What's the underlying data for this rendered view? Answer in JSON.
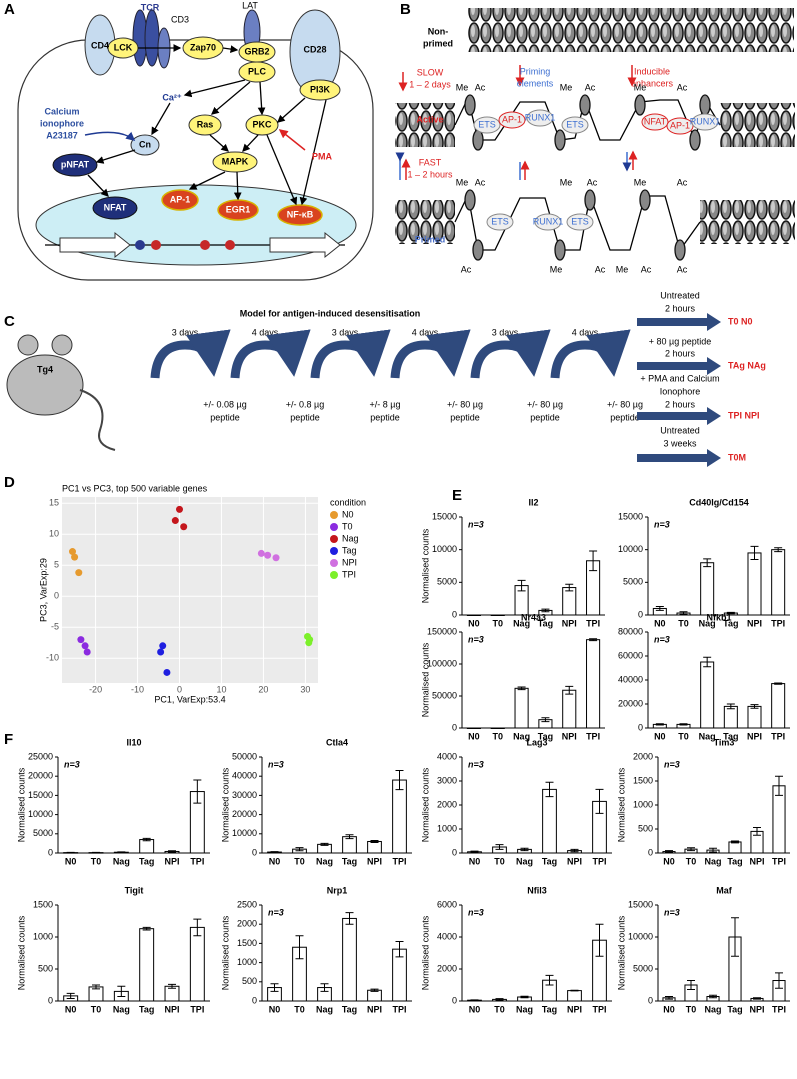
{
  "panels": [
    "A",
    "B",
    "C",
    "D",
    "E",
    "F"
  ],
  "diagram_a": {
    "nodes": [
      "TCR",
      "CD3",
      "LAT",
      "CD4",
      "LCK",
      "Zap70",
      "GRB2",
      "PLC",
      "CD28",
      "PI3K",
      "Ca²⁺",
      "Calcium",
      "ionophore",
      "A23187",
      "Cn",
      "pNFAT",
      "Ras",
      "PKC",
      "PMA",
      "MAPK",
      "NFAT",
      "AP-1",
      "EGR1",
      "NF-κB"
    ]
  },
  "diagram_b": {
    "rows": [
      [
        "Non-",
        "primed"
      ],
      "Active",
      "Primed"
    ],
    "slow": [
      "SLOW",
      "1 – 2 days"
    ],
    "fast": [
      "FAST",
      "1 – 2 hours"
    ],
    "regions": [
      [
        "Priming",
        "elements"
      ],
      [
        "Inducible",
        "enhancers"
      ]
    ],
    "factors_active": [
      "ETS",
      "AP-1",
      "RUNX1",
      "ETS",
      "NFAT",
      "AP-1",
      "RUNX1"
    ],
    "factors_primed": [
      "ETS",
      "RUNX1",
      "ETS"
    ],
    "marks_active": [
      "Me",
      "Ac",
      "Me",
      "Ac",
      "Me",
      "Ac"
    ],
    "marks_primed_top": [
      "Me",
      "Ac",
      "Me",
      "Ac",
      "Me",
      "Ac"
    ],
    "marks_primed_bottom": [
      "Ac",
      "Me",
      "Ac",
      "Me",
      "Ac",
      "Ac"
    ]
  },
  "diagram_c": {
    "title": "Model for antigen-induced desensitisation",
    "mouse": "Tg4",
    "intervals": [
      "3 days",
      "4 days",
      "3 days",
      "4 days",
      "3 days",
      "4 days"
    ],
    "doses": [
      [
        "+/- 0.08 µg",
        "peptide"
      ],
      [
        "+/- 0.8 µg",
        "peptide"
      ],
      [
        "+/- 8 µg",
        "peptide"
      ],
      [
        "+/- 80 µg",
        "peptide"
      ],
      [
        "+/- 80 µg",
        "peptide"
      ],
      [
        "+/- 80 µg",
        "peptide"
      ]
    ],
    "treatments": [
      [
        "Untreated",
        "2 hours"
      ],
      [
        "+ 80 µg peptide",
        "2 hours"
      ],
      [
        "+ PMA and Calcium",
        "Ionophore",
        "2 hours"
      ],
      [
        "Untreated",
        "3 weeks"
      ]
    ],
    "outputs": [
      "T0  N0",
      "TAg  NAg",
      "TPI  NPI",
      "T0M"
    ]
  },
  "chart_data": [
    {
      "type": "scatter",
      "title": "PC1 vs PC3, top 500 variable genes",
      "xlabel": "PC1, VarExp:53.4",
      "ylabel": "PC3, VarExp:29",
      "legend_title": "condition",
      "grid": true,
      "xlim": [
        -28,
        33
      ],
      "ylim": [
        -14,
        16
      ],
      "xticks": [
        -20,
        -10,
        0,
        10,
        20,
        30
      ],
      "yticks": [
        -10,
        -5,
        0,
        5,
        10,
        15
      ],
      "series": [
        {
          "name": "N0",
          "color": "#e69a2e",
          "x": [
            -25.5,
            -25,
            -24
          ],
          "y": [
            7.2,
            6.3,
            3.8
          ]
        },
        {
          "name": "T0",
          "color": "#8b2be0",
          "x": [
            -23.5,
            -22.5,
            -22
          ],
          "y": [
            -7,
            -8,
            -9
          ]
        },
        {
          "name": "Nag",
          "color": "#c4161c",
          "x": [
            0,
            -1,
            1
          ],
          "y": [
            14,
            12.2,
            11.2
          ]
        },
        {
          "name": "Tag",
          "color": "#1f1fe0",
          "x": [
            -4,
            -4.5,
            -3
          ],
          "y": [
            -8,
            -9,
            -12.3
          ]
        },
        {
          "name": "NPI",
          "color": "#d070e0",
          "x": [
            19.5,
            21,
            23
          ],
          "y": [
            6.9,
            6.6,
            6.2
          ]
        },
        {
          "name": "TPI",
          "color": "#7cf02a",
          "x": [
            30.5,
            31,
            30.8
          ],
          "y": [
            -6.5,
            -7,
            -7.5
          ]
        }
      ]
    },
    {
      "type": "bar",
      "title": "Il2",
      "note": "n=3",
      "ylabel": "Normalised counts",
      "categories": [
        "N0",
        "T0",
        "Nag",
        "Tag",
        "NPI",
        "TPI"
      ],
      "values": [
        0,
        0,
        4500,
        700,
        4200,
        8300
      ],
      "errors": [
        0,
        0,
        800,
        200,
        500,
        1500
      ],
      "ylim": [
        0,
        15000
      ],
      "yticks": [
        0,
        5000,
        10000,
        15000
      ],
      "color": "#000000"
    },
    {
      "type": "bar",
      "title": "Cd40lg/Cd154",
      "note": "n=3",
      "categories": [
        "N0",
        "T0",
        "Nag",
        "Tag",
        "NPI",
        "TPI"
      ],
      "values": [
        1000,
        300,
        8000,
        300,
        9500,
        10000
      ],
      "errors": [
        300,
        200,
        600,
        100,
        1000,
        300
      ],
      "ylim": [
        0,
        15000
      ],
      "yticks": [
        0,
        5000,
        10000,
        15000
      ],
      "color": "#000000"
    },
    {
      "type": "bar",
      "title": "Nr4a3",
      "note": "n=3",
      "ylabel": "Normalised counts",
      "categories": [
        "N0",
        "T0",
        "Nag",
        "Tag",
        "NPI",
        "TPI"
      ],
      "values": [
        0,
        0,
        62000,
        13000,
        59000,
        138000
      ],
      "errors": [
        0,
        0,
        2000,
        3000,
        6000,
        1500
      ],
      "ylim": [
        0,
        150000
      ],
      "yticks": [
        0,
        50000,
        100000,
        150000
      ],
      "color": "#000000"
    },
    {
      "type": "bar",
      "title": "Nfkb1",
      "note": "n=3",
      "categories": [
        "N0",
        "T0",
        "Nag",
        "Tag",
        "NPI",
        "TPI"
      ],
      "values": [
        3000,
        3000,
        55000,
        18000,
        18000,
        37000
      ],
      "errors": [
        500,
        500,
        4000,
        2000,
        1500,
        500
      ],
      "ylim": [
        0,
        80000
      ],
      "yticks": [
        0,
        20000,
        40000,
        60000,
        80000
      ],
      "color": "#000000"
    },
    {
      "type": "bar",
      "title": "Il10",
      "note": "n=3",
      "ylabel": "Normalised counts",
      "categories": [
        "N0",
        "T0",
        "Nag",
        "Tag",
        "NPI",
        "TPI"
      ],
      "values": [
        100,
        100,
        200,
        3500,
        400,
        16000
      ],
      "errors": [
        50,
        50,
        100,
        300,
        200,
        3000
      ],
      "ylim": [
        0,
        25000
      ],
      "yticks": [
        0,
        5000,
        10000,
        15000,
        20000,
        25000
      ],
      "color": "#000000"
    },
    {
      "type": "bar",
      "title": "Ctla4",
      "note": "n=3",
      "ylabel": "Normalised counts",
      "categories": [
        "N0",
        "T0",
        "Nag",
        "Tag",
        "NPI",
        "TPI"
      ],
      "values": [
        500,
        2000,
        4500,
        8500,
        6000,
        38000
      ],
      "errors": [
        200,
        800,
        500,
        1000,
        500,
        5000
      ],
      "ylim": [
        0,
        50000
      ],
      "yticks": [
        0,
        10000,
        20000,
        30000,
        40000,
        50000
      ],
      "color": "#000000"
    },
    {
      "type": "bar",
      "title": "Lag3",
      "note": "n=3",
      "ylabel": "Normalised counts",
      "categories": [
        "N0",
        "T0",
        "Nag",
        "Tag",
        "NPI",
        "TPI"
      ],
      "values": [
        50,
        250,
        150,
        2650,
        100,
        2150
      ],
      "errors": [
        30,
        100,
        50,
        300,
        50,
        500
      ],
      "ylim": [
        0,
        4000
      ],
      "yticks": [
        0,
        1000,
        2000,
        3000,
        4000
      ],
      "color": "#000000"
    },
    {
      "type": "bar",
      "title": "Tim3",
      "note": "n=3",
      "ylabel": "Normalised counts",
      "categories": [
        "N0",
        "T0",
        "Nag",
        "Tag",
        "NPI",
        "TPI"
      ],
      "values": [
        30,
        80,
        60,
        230,
        450,
        1400
      ],
      "errors": [
        20,
        30,
        40,
        20,
        80,
        200
      ],
      "ylim": [
        0,
        2000
      ],
      "yticks": [
        0,
        500,
        1000,
        1500,
        2000
      ],
      "color": "#000000"
    },
    {
      "type": "bar",
      "title": "Tigit",
      "ylabel": "Normalised counts",
      "categories": [
        "N0",
        "T0",
        "Nag",
        "Tag",
        "NPI",
        "TPI"
      ],
      "values": [
        80,
        220,
        150,
        1130,
        230,
        1150
      ],
      "errors": [
        40,
        30,
        80,
        20,
        30,
        130
      ],
      "ylim": [
        0,
        1500
      ],
      "yticks": [
        0,
        500,
        1000,
        1500
      ],
      "color": "#000000"
    },
    {
      "type": "bar",
      "title": "Nrp1",
      "note": "n=3",
      "ylabel": "Normalised counts",
      "categories": [
        "N0",
        "T0",
        "Nag",
        "Tag",
        "NPI",
        "TPI"
      ],
      "values": [
        350,
        1400,
        350,
        2150,
        280,
        1350
      ],
      "errors": [
        100,
        300,
        100,
        150,
        30,
        200
      ],
      "ylim": [
        0,
        2500
      ],
      "yticks": [
        0,
        500,
        1000,
        1500,
        2000,
        2500
      ],
      "color": "#000000"
    },
    {
      "type": "bar",
      "title": "Nfil3",
      "note": "n=3",
      "ylabel": "Normalised counts",
      "categories": [
        "N0",
        "T0",
        "Nag",
        "Tag",
        "NPI",
        "TPI"
      ],
      "values": [
        50,
        100,
        250,
        1300,
        650,
        3800
      ],
      "errors": [
        20,
        50,
        50,
        300,
        20,
        1000
      ],
      "ylim": [
        0,
        6000
      ],
      "yticks": [
        0,
        2000,
        4000,
        6000
      ],
      "color": "#000000"
    },
    {
      "type": "bar",
      "title": "Maf",
      "note": "n=3",
      "ylabel": "Normalised counts",
      "categories": [
        "N0",
        "T0",
        "Nag",
        "Tag",
        "NPI",
        "TPI"
      ],
      "values": [
        500,
        2500,
        700,
        10000,
        400,
        3200
      ],
      "errors": [
        200,
        700,
        200,
        3000,
        100,
        1200
      ],
      "ylim": [
        0,
        15000
      ],
      "yticks": [
        0,
        5000,
        10000,
        15000
      ],
      "color": "#000000"
    }
  ]
}
